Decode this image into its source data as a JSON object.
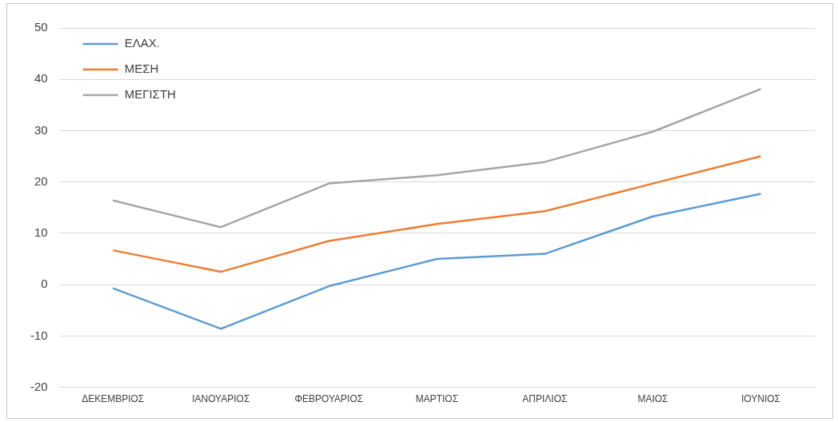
{
  "chart_data": {
    "type": "line",
    "categories": [
      "ΔΕΚΕΜΒΡΙΟΣ",
      "ΙΑΝΟΥΑΡΙΟΣ",
      "ΦΕΒΡΟΥΑΡΙΟΣ",
      "ΜΑΡΤΙΟΣ",
      "ΑΠΡΙΛΙΟΣ",
      "ΜΑΙΟΣ",
      "ΙΟΥΝΙΟΣ"
    ],
    "series": [
      {
        "name": "ΕΛΑΧ.",
        "color": "#5b9bd5",
        "values": [
          -0.7,
          -8.6,
          -0.3,
          5.0,
          6.0,
          13.3,
          17.7
        ]
      },
      {
        "name": "ΜΕΣΗ",
        "color": "#ed7d31",
        "values": [
          6.7,
          2.5,
          8.5,
          11.8,
          14.3,
          19.7,
          25.0
        ]
      },
      {
        "name": "ΜΕΓΙΣΤΗ",
        "color": "#a5a5a5",
        "values": [
          16.4,
          11.2,
          19.7,
          21.3,
          23.9,
          29.8,
          38.1
        ]
      }
    ],
    "ylim": [
      -20,
      50
    ],
    "yticks": [
      -20,
      -10,
      0,
      10,
      20,
      30,
      40,
      50
    ],
    "grid": "y",
    "legend": "top left",
    "marker": "none",
    "line_style": "solid"
  }
}
